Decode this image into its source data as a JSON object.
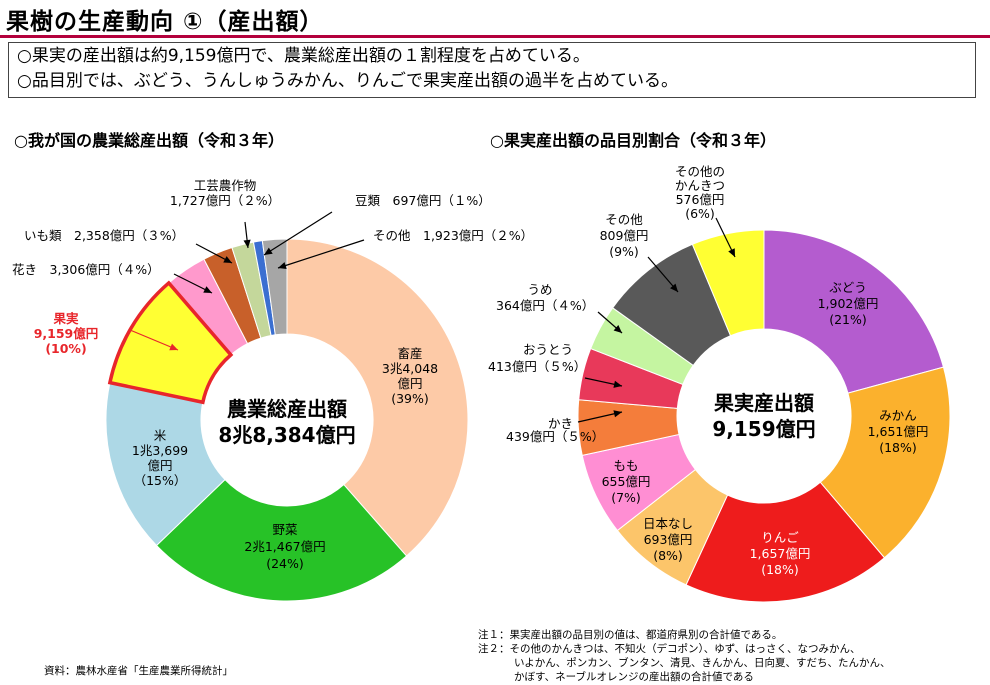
{
  "page": {
    "title": "果樹の生産動向 ①（産出額）",
    "summary": [
      "○果実の産出額は約9,159億円で、農業総産出額の１割程度を占めている。",
      "○品目別では、ぶどう、うんしゅうみかん、りんごで果実産出額の過半を占めている。"
    ],
    "left_title": "○我が国の農業総産出額（令和３年）",
    "right_title": "○果実産出額の品目別割合（令和３年）",
    "source": "資料：農林水産省「生産農業所得統計」",
    "notes": [
      "注１：果実産出額の品目別の値は、都道府県別の合計値である。",
      "注２：その他のかんきつは、不知火（デコポン）、ゆず、はっさく、なつみかん、",
      "いよかん、ポンカン、ブンタン、清見、きんかん、日向夏、すだち、たんかん、",
      "かぼす、ネーブルオレンジの産出額の合計値である"
    ]
  },
  "chart_data": [
    {
      "type": "pie",
      "style": "donut",
      "title": "○我が国の農業総産出額（令和３年）",
      "center_label": [
        "農業総産出額",
        "8兆8,384億円"
      ],
      "unit": "億円",
      "slices": [
        {
          "name": "畜産",
          "value": 34048,
          "value_label": "3兆4,048",
          "unit_label": "億円",
          "pct": "(39%)",
          "color": "#fdcaa7"
        },
        {
          "name": "野菜",
          "value": 21467,
          "value_label": "2兆1,467億円",
          "pct": "(24%)",
          "color": "#27c227"
        },
        {
          "name": "米",
          "value": 13699,
          "value_label": "1兆3,699",
          "unit_label": "億円",
          "pct": "（15%）",
          "color": "#add8e6"
        },
        {
          "name": "果実",
          "value": 9159,
          "value_label": "9,159億円",
          "pct": "(10%)",
          "color": "#ffff33",
          "highlight_color": "#e8262b"
        },
        {
          "name": "花き",
          "value": 3306,
          "label": "花き　3,306億円（４%）",
          "color": "#ff99cc"
        },
        {
          "name": "いも類",
          "value": 2358,
          "label": "いも類　2,358億円（３%）",
          "color": "#c8602a"
        },
        {
          "name": "工芸農作物",
          "value": 1727,
          "label_lines": [
            "工芸農作物",
            "1,727億円（２%）"
          ],
          "color": "#c4d79b"
        },
        {
          "name": "豆類",
          "value": 697,
          "label": "豆類　697億円（１%）",
          "color": "#3b6fd1"
        },
        {
          "name": "その他",
          "value": 1923,
          "label": "その他　1,923億円（２%）",
          "color": "#a6a6a6"
        }
      ]
    },
    {
      "type": "pie",
      "style": "donut",
      "title": "○果実産出額の品目別割合（令和３年）",
      "center_label": [
        "果実産出額",
        "9,159億円"
      ],
      "unit": "億円",
      "slices": [
        {
          "name": "ぶどう",
          "value": 1902,
          "value_label": "1,902億円",
          "pct": "(21%)",
          "color": "#b45ccf"
        },
        {
          "name": "みかん",
          "value": 1651,
          "value_label": "1,651億円",
          "pct": "(18%)",
          "color": "#fbb12d"
        },
        {
          "name": "りんご",
          "value": 1657,
          "value_label": "1,657億円",
          "pct": "(18%)",
          "color": "#ee1c1c"
        },
        {
          "name": "日本なし",
          "value": 693,
          "value_label": "693億円",
          "pct": "(8%)",
          "color": "#fcc56a"
        },
        {
          "name": "もも",
          "value": 655,
          "value_label": "655億円",
          "pct": "(7%)",
          "color": "#ff8ed3"
        },
        {
          "name": "かき",
          "value": 439,
          "label_lines": [
            "かき",
            "439億円（５%）"
          ],
          "color": "#f47d3b"
        },
        {
          "name": "おうとう",
          "value": 413,
          "label_lines": [
            "おうとう",
            "413億円（５%）"
          ],
          "color": "#e8395a"
        },
        {
          "name": "うめ",
          "value": 364,
          "label_lines": [
            "うめ",
            "364億円（４%）"
          ],
          "color": "#c5f5a1"
        },
        {
          "name": "その他",
          "value": 809,
          "label_lines": [
            "その他",
            "809億円",
            "(9%)"
          ],
          "color": "#595959"
        },
        {
          "name": "その他のかんきつ",
          "value": 576,
          "label_lines": [
            "その他の",
            "かんきつ",
            "576億円",
            "(6%)"
          ],
          "color": "#ffff33"
        }
      ]
    }
  ]
}
